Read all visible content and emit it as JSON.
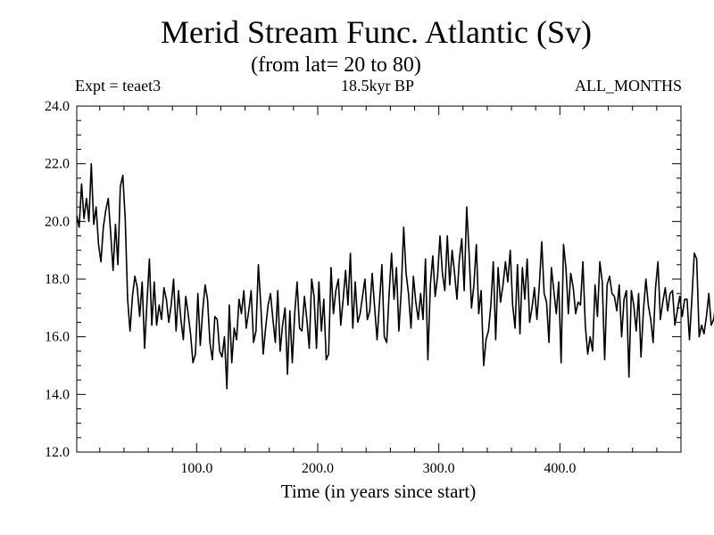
{
  "header": {
    "title": "Merid Stream Func. Atlantic (Sv)",
    "subtitle": "(from lat= 20 to 80)",
    "left_label": "Expt = teaet3",
    "center_label": "18.5kyr BP",
    "right_label": "ALL_MONTHS"
  },
  "chart_data": {
    "type": "line",
    "title": "Merid Stream Func. Atlantic (Sv)",
    "subtitle": "(from lat= 20 to 80)",
    "xlabel": "Time (in years since start)",
    "ylabel": "",
    "xlim": [
      1,
      500
    ],
    "ylim": [
      12,
      24
    ],
    "x_ticks": [
      100,
      200,
      300,
      400
    ],
    "x_tick_labels": [
      "100.0",
      "200.0",
      "300.0",
      "400.0"
    ],
    "y_ticks": [
      12,
      14,
      16,
      18,
      20,
      22,
      24
    ],
    "y_tick_labels": [
      "12.0",
      "14.0",
      "16.0",
      "18.0",
      "20.0",
      "22.0",
      "24.0"
    ],
    "grid": false,
    "line_color": "#000000",
    "series": [
      {
        "name": "Merid Stream Func. Atlantic",
        "x_start": 1,
        "x_step": 2,
        "values": [
          20.2,
          19.8,
          21.3,
          20.1,
          20.8,
          20.0,
          22.0,
          19.9,
          20.5,
          19.2,
          18.6,
          19.8,
          20.4,
          20.8,
          19.6,
          18.3,
          19.9,
          18.5,
          21.2,
          21.6,
          20.1,
          17.3,
          16.2,
          17.4,
          18.1,
          17.7,
          16.7,
          17.9,
          15.6,
          17.2,
          18.7,
          16.4,
          17.9,
          16.4,
          17.1,
          16.6,
          17.7,
          17.3,
          16.5,
          17.1,
          18.0,
          16.2,
          17.6,
          16.6,
          15.9,
          17.4,
          16.8,
          16.1,
          15.1,
          15.4,
          17.5,
          15.7,
          16.9,
          17.8,
          17.3,
          15.8,
          15.2,
          16.7,
          16.6,
          15.5,
          15.3,
          16.0,
          14.2,
          17.1,
          15.1,
          16.3,
          15.9,
          17.3,
          16.8,
          17.6,
          16.3,
          16.9,
          17.6,
          15.8,
          16.2,
          18.5,
          17.1,
          15.4,
          16.3,
          17.1,
          17.5,
          16.6,
          15.8,
          17.6,
          15.5,
          16.4,
          17.0,
          14.7,
          16.9,
          15.1,
          16.8,
          17.9,
          16.3,
          16.2,
          17.4,
          16.6,
          15.6,
          18.0,
          17.4,
          15.6,
          17.9,
          16.2,
          17.3,
          15.2,
          15.4,
          18.4,
          16.8,
          17.6,
          18.0,
          16.4,
          17.3,
          18.3,
          17.1,
          18.9,
          16.3,
          17.9,
          16.5,
          16.8,
          17.4,
          18.0,
          16.6,
          16.9,
          18.2,
          17.0,
          15.9,
          17.2,
          18.5,
          16.0,
          15.8,
          17.5,
          18.9,
          17.3,
          18.4,
          16.2,
          17.6,
          19.8,
          18.2,
          17.5,
          16.3,
          18.1,
          17.2,
          16.6,
          17.5,
          16.6,
          18.7,
          15.2,
          17.8,
          18.8,
          17.4,
          18.1,
          19.5,
          18.2,
          17.6,
          19.5,
          17.8,
          19.0,
          18.2,
          17.3,
          18.7,
          19.4,
          17.6,
          20.5,
          18.9,
          17.0,
          17.8,
          19.2,
          16.8,
          17.6,
          15.0,
          15.9,
          16.2,
          17.1,
          18.6,
          15.9,
          18.4,
          17.2,
          17.8,
          18.6,
          17.9,
          19.0,
          17.1,
          16.3,
          18.5,
          16.1,
          18.4,
          17.3,
          18.7,
          16.5,
          17.0,
          17.7,
          16.6,
          17.8,
          19.3,
          17.5,
          17.2,
          15.8,
          18.4,
          17.6,
          16.8,
          17.9,
          15.1,
          19.2,
          18.4,
          16.8,
          18.2,
          17.7,
          16.8,
          17.2,
          17.1,
          18.6,
          16.4,
          15.4,
          16.0,
          15.5,
          17.8,
          16.7,
          18.6,
          17.9,
          15.2,
          17.8,
          18.1,
          17.5,
          17.4,
          16.9,
          17.8,
          16.0,
          17.3,
          17.6,
          14.6,
          17.6,
          17.1,
          16.2,
          17.5,
          15.3,
          16.9,
          18.0,
          17.1,
          16.6,
          15.8,
          17.7,
          18.6,
          16.6,
          17.2,
          17.7,
          16.9,
          17.5,
          17.6,
          16.4,
          16.9,
          17.4,
          16.7,
          17.3,
          17.3,
          15.9,
          17.3,
          18.9,
          18.7,
          16.0,
          16.4,
          16.1,
          16.7,
          17.5,
          16.4,
          16.6,
          17.2,
          15.9,
          16.8,
          16.0,
          16.8,
          17.6,
          17.5,
          18.7,
          16.8,
          17.2,
          18.1,
          19.2,
          17.6,
          18.6,
          18.0,
          17.8,
          18.4,
          19.9,
          18.5,
          17.5,
          18.0,
          18.3,
          19.6,
          18.5,
          20.0,
          19.4,
          17.8,
          17.4,
          19.2,
          18.2,
          17.2,
          18.7,
          19.8,
          18.6,
          17.8,
          15.9,
          16.2,
          20.4,
          19.2,
          18.3,
          17.8,
          21.1,
          18.1,
          20.2,
          17.4,
          19.5,
          18.7,
          17.5,
          17.3,
          16.5,
          18.2,
          19.2,
          17.0,
          16.3,
          18.1,
          17.5,
          18.8,
          19.5,
          20.5,
          20.8,
          19.3,
          18.7,
          17.8,
          18.4,
          19.3,
          17.6,
          18.9,
          16.9,
          17.6,
          18.8,
          18.0,
          16.8,
          19.5,
          18.4,
          19.6,
          18.8,
          17.9,
          18.2,
          18.5,
          17.0,
          17.7,
          16.3
        ]
      }
    ]
  }
}
